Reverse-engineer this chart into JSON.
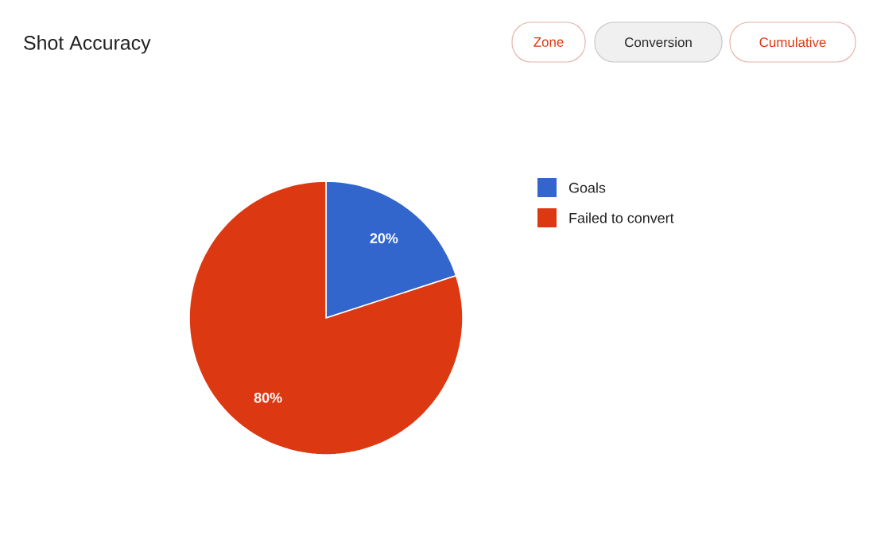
{
  "chart_data": {
    "type": "pie",
    "title": "Shot Accuracy",
    "categories": [
      "Goals",
      "Failed to convert"
    ],
    "values": [
      20,
      80
    ],
    "colors": [
      "#3366cc",
      "#dc3912"
    ],
    "value_labels": [
      "20%",
      "80%"
    ],
    "legend": "right",
    "annotations": [
      "Zone",
      "Conversion",
      "Cumulative"
    ]
  }
}
